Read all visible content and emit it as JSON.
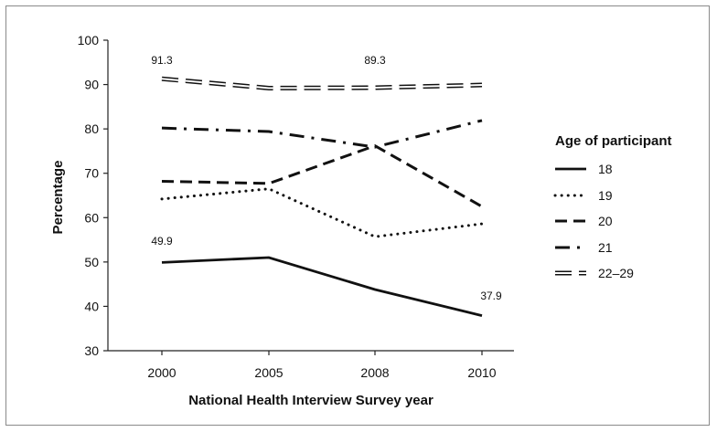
{
  "chart_data": {
    "type": "line",
    "title": "",
    "xlabel": "National Health Interview Survey year",
    "ylabel": "Percentage",
    "categories": [
      "2000",
      "2005",
      "2008",
      "2010"
    ],
    "ylim": [
      30,
      100
    ],
    "yticks": [
      30,
      40,
      50,
      60,
      70,
      80,
      90,
      100
    ],
    "grid": false,
    "legend": {
      "title": "Age of participant",
      "position": "right"
    },
    "series": [
      {
        "name": "18",
        "style": "solid",
        "values": [
          49.9,
          51.0,
          43.8,
          37.9
        ]
      },
      {
        "name": "19",
        "style": "dotted",
        "values": [
          64.2,
          66.5,
          55.7,
          58.6
        ]
      },
      {
        "name": "20",
        "style": "dashed",
        "values": [
          68.2,
          67.7,
          76.2,
          62.5
        ]
      },
      {
        "name": "21",
        "style": "dashdot",
        "values": [
          80.2,
          79.4,
          75.9,
          81.9
        ]
      },
      {
        "name": "22–29",
        "style": "double",
        "values": [
          91.3,
          89.2,
          89.3,
          89.9
        ]
      }
    ],
    "annotations": [
      {
        "text": "91.3",
        "series": "22–29",
        "index": 0
      },
      {
        "text": "89.3",
        "series": "22–29",
        "index": 2
      },
      {
        "text": "49.9",
        "series": "18",
        "index": 0
      },
      {
        "text": "37.9",
        "series": "18",
        "index": 3
      }
    ]
  }
}
